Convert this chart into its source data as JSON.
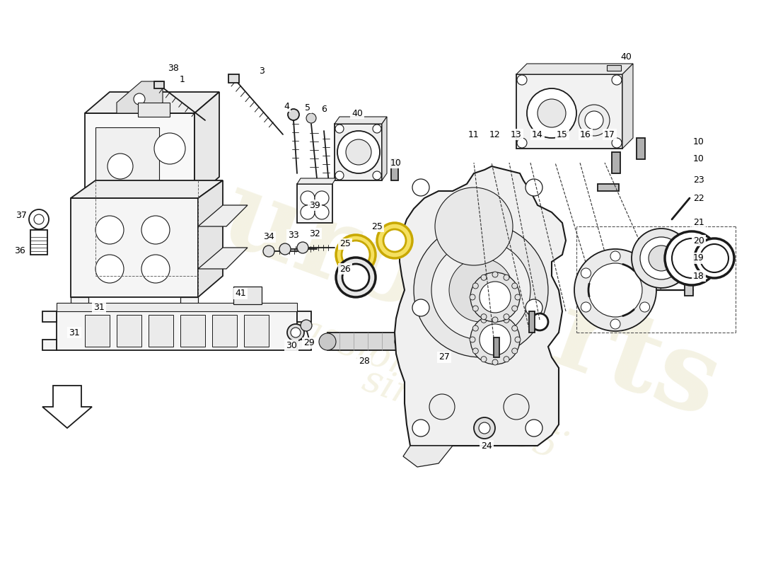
{
  "bg_color": "#ffffff",
  "line_color": "#1a1a1a",
  "wm_color": "#f0edd8",
  "figsize": [
    11.0,
    8.0
  ],
  "dpi": 100,
  "xlim": [
    0,
    1100
  ],
  "ylim": [
    0,
    800
  ]
}
